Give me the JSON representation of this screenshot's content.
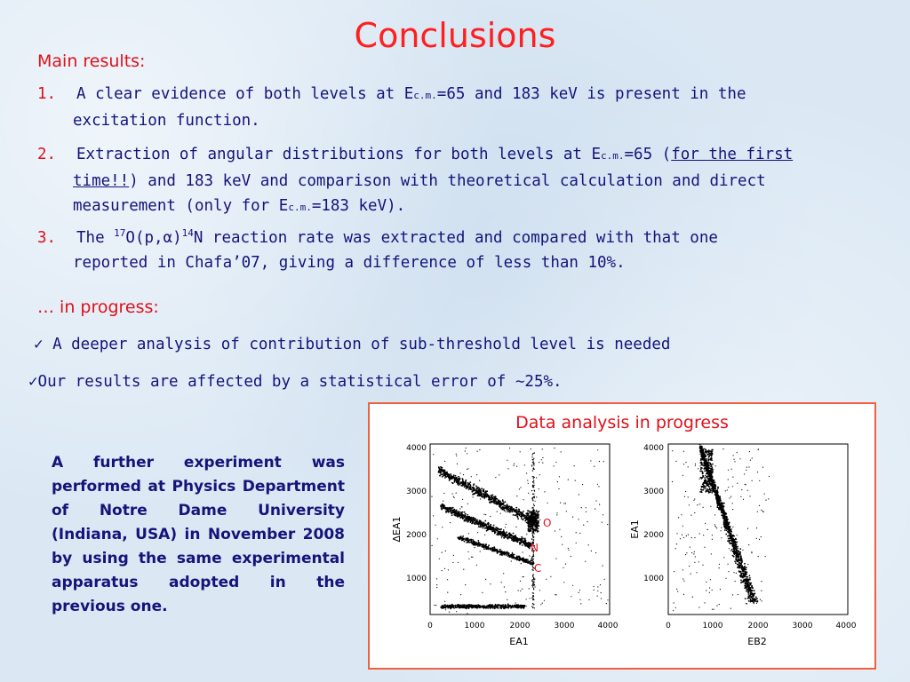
{
  "title": "Conclusions",
  "main_results": {
    "heading": "Main results:",
    "items": [
      {
        "num": "1.",
        "pre": "A clear evidence of both levels at E",
        "sub": "c.m.",
        "post": "=65 and 183 keV is present in the",
        "cont": "excitation function."
      },
      {
        "num": "2.",
        "pre": "Extraction of angular distributions for both levels at E",
        "sub": "c.m.",
        "post": "=65 (",
        "underline1": "for the first",
        "line2_underline": "time!!",
        "line2_rest": ") and 183 keV and comparison with theoretical calculation and direct",
        "line3_pre": "measurement (only for E",
        "line3_sub": "c.m.",
        "line3_post": "=183 keV)."
      },
      {
        "num": "3.",
        "pre": "The ",
        "sup1": "17",
        "mid": "O(p,α)",
        "sup2": "14",
        "post": "N reaction rate was extracted and compared with that one",
        "cont": "reported in Chafa’07, giving a difference of less than 10%."
      }
    ]
  },
  "progress": {
    "heading": "… in progress:",
    "checks": [
      "✓ A deeper analysis of contribution of sub-threshold level is needed",
      "✓Our results are affected by a statistical error of ∼25%."
    ]
  },
  "paragraph": "A further experiment was performed at Physics Department of Notre Dame University (Indiana, USA) in November 2008 by using the same experimental apparatus adopted in the previous one.",
  "panel": {
    "title": "Data analysis in progress",
    "plot1": {
      "ylabel": "ΔEA1",
      "xlabel": "EA1",
      "xticks": [
        "0",
        "1000",
        "2000",
        "3000",
        "4000"
      ],
      "yticks": [
        "1000",
        "2000",
        "3000",
        "4000"
      ],
      "labels": [
        "O",
        "N",
        "C"
      ]
    },
    "plot2": {
      "ylabel": "EA1",
      "xlabel": "EB2",
      "xticks": [
        "0",
        "1000",
        "2000",
        "3000",
        "4000"
      ],
      "yticks": [
        "1000",
        "2000",
        "3000",
        "4000"
      ]
    }
  },
  "colors": {
    "accent_red": "#e0101a",
    "text_navy": "#14147a",
    "panel_border": "#f06040"
  }
}
